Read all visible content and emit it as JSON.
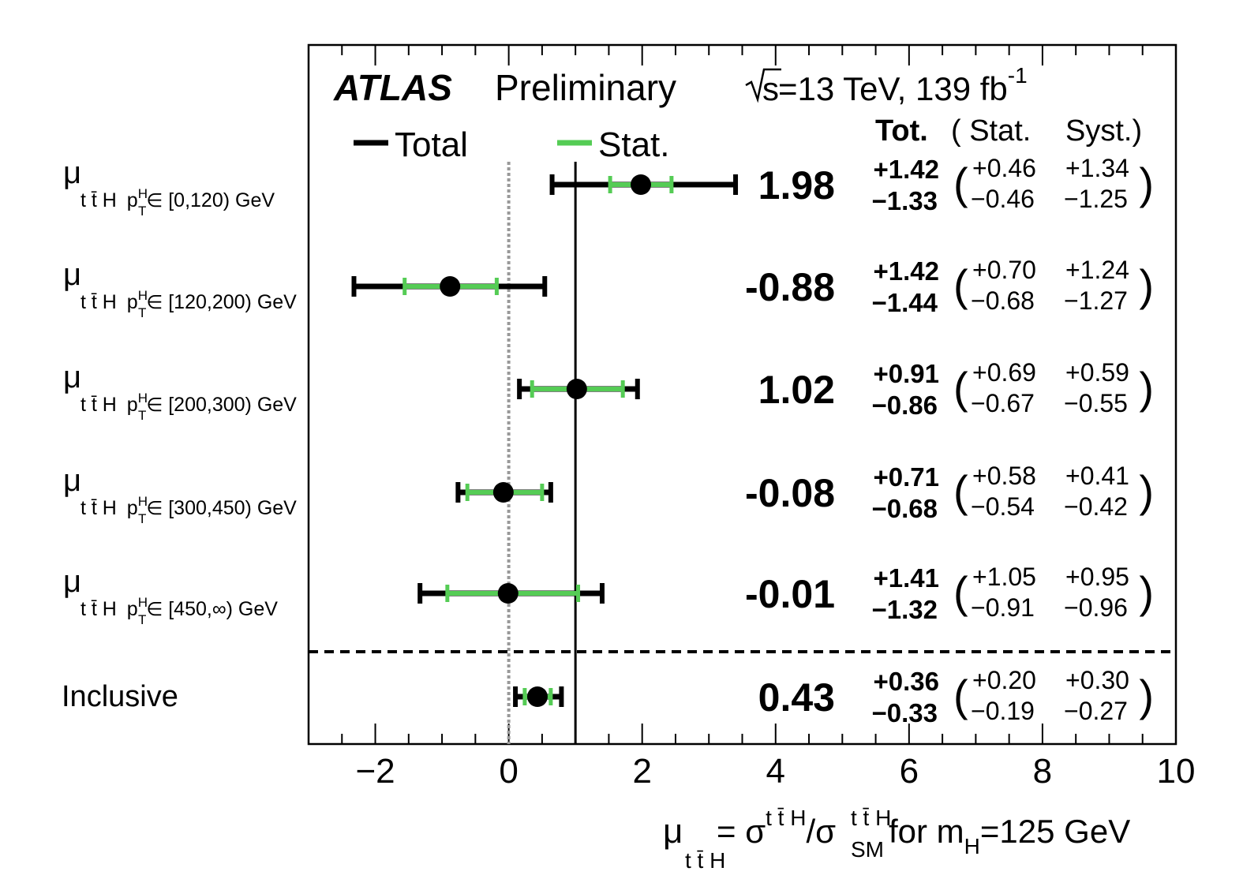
{
  "chart_data": {
    "type": "forest",
    "header": {
      "experiment": "ATLAS",
      "status": "Preliminary",
      "energy_prefix": "s",
      "energy": "=13 TeV, 139 fb",
      "energy_exp": "-1"
    },
    "legend": {
      "total": "Total",
      "stat": "Stat.",
      "total_color": "#000000",
      "stat_color": "#55cc55"
    },
    "column_headers": {
      "tot": "Tot.",
      "stat": "( Stat.",
      "syst": "Syst.)"
    },
    "x_axis": {
      "range": [
        -3,
        10
      ],
      "major_ticks": [
        -2,
        0,
        2,
        4,
        6,
        8,
        10
      ],
      "tick_labels": [
        "−2",
        "0",
        "2",
        "4",
        "6",
        "8",
        "10"
      ],
      "minor_step": 0.5,
      "label": {
        "mu": "μ",
        "mu_sub": "t t̄ H",
        "eq": " = σ",
        "sig_sup": "t t̄ H",
        "slash": "/σ",
        "sm_sup": "t t̄ H",
        "sm_sub": "SM",
        "rest": " for m",
        "mh_sub": "H",
        "end": "=125 GeV"
      }
    },
    "reference_line": 1,
    "zero_line": 0,
    "label_prefix": {
      "mu": "μ",
      "tth": "t t̄ H",
      "pt": "p",
      "pt_sup": "H",
      "pt_sub": "T",
      "in": "∈"
    },
    "rows": [
      {
        "label_range": "[0,120) GeV",
        "value": 1.98,
        "value_text": "1.98",
        "tot_up": "+1.42",
        "tot_dn": "−1.33",
        "stat_up": "+0.46",
        "stat_dn": "−0.46",
        "syst_up": "+1.34",
        "syst_dn": "−1.25",
        "tot": [
          1.42,
          1.33
        ],
        "stat": [
          0.46,
          0.46
        ]
      },
      {
        "label_range": "[120,200) GeV",
        "value": -0.88,
        "value_text": "-0.88",
        "tot_up": "+1.42",
        "tot_dn": "−1.44",
        "stat_up": "+0.70",
        "stat_dn": "−0.68",
        "syst_up": "+1.24",
        "syst_dn": "−1.27",
        "tot": [
          1.42,
          1.44
        ],
        "stat": [
          0.7,
          0.68
        ]
      },
      {
        "label_range": "[200,300) GeV",
        "value": 1.02,
        "value_text": "1.02",
        "tot_up": "+0.91",
        "tot_dn": "−0.86",
        "stat_up": "+0.69",
        "stat_dn": "−0.67",
        "syst_up": "+0.59",
        "syst_dn": "−0.55",
        "tot": [
          0.91,
          0.86
        ],
        "stat": [
          0.69,
          0.67
        ]
      },
      {
        "label_range": "[300,450) GeV",
        "value": -0.08,
        "value_text": "-0.08",
        "tot_up": "+0.71",
        "tot_dn": "−0.68",
        "stat_up": "+0.58",
        "stat_dn": "−0.54",
        "syst_up": "+0.41",
        "syst_dn": "−0.42",
        "tot": [
          0.71,
          0.68
        ],
        "stat": [
          0.58,
          0.54
        ]
      },
      {
        "label_range": "[450,∞) GeV",
        "value": -0.01,
        "value_text": "-0.01",
        "tot_up": "+1.41",
        "tot_dn": "−1.32",
        "stat_up": "+1.05",
        "stat_dn": "−0.91",
        "syst_up": "+0.95",
        "syst_dn": "−0.96",
        "tot": [
          1.41,
          1.32
        ],
        "stat": [
          1.05,
          0.91
        ]
      },
      {
        "label_plain": "Inclusive",
        "value": 0.43,
        "value_text": "0.43",
        "tot_up": "+0.36",
        "tot_dn": "−0.33",
        "stat_up": "+0.20",
        "stat_dn": "−0.19",
        "syst_up": "+0.30",
        "syst_dn": "−0.27",
        "tot": [
          0.36,
          0.33
        ],
        "stat": [
          0.2,
          0.19
        ]
      }
    ]
  }
}
